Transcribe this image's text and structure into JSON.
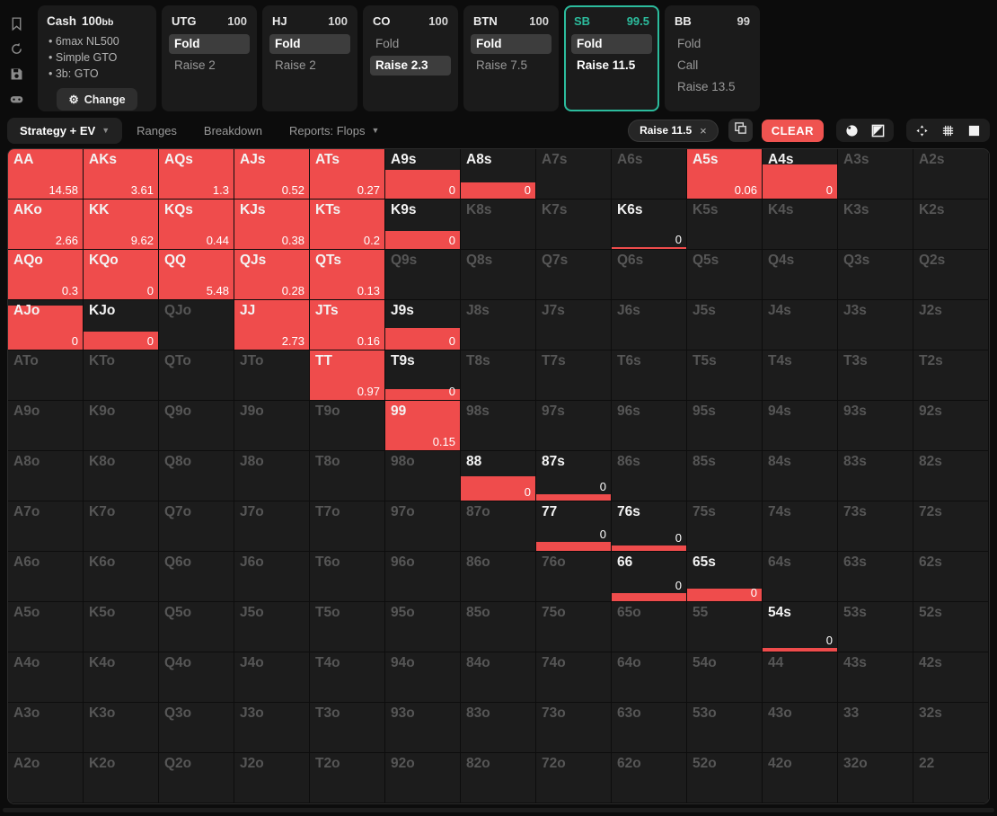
{
  "colors": {
    "accent_red": "#ef4c4c",
    "accent_teal": "#2cbc9d",
    "card_bg": "#1b1b1b",
    "cell_bg": "#1c1c1c"
  },
  "rail": {
    "icons": [
      "bookmark",
      "reset",
      "save",
      "gamepad",
      "row-height"
    ]
  },
  "config": {
    "game_type": "Cash",
    "stack": "100",
    "stack_unit": "bb",
    "bullets": [
      "6max NL500",
      "Simple GTO",
      "3b: GTO"
    ],
    "gear": "⚙",
    "change_label": "Change"
  },
  "positions": [
    {
      "name": "UTG",
      "stack": "100",
      "selected": false,
      "actions": [
        {
          "label": "Fold",
          "style": "pill"
        },
        {
          "label": "Raise 2",
          "style": "plain"
        }
      ]
    },
    {
      "name": "HJ",
      "stack": "100",
      "selected": false,
      "actions": [
        {
          "label": "Fold",
          "style": "pill"
        },
        {
          "label": "Raise 2",
          "style": "plain"
        }
      ]
    },
    {
      "name": "CO",
      "stack": "100",
      "selected": false,
      "actions": [
        {
          "label": "Fold",
          "style": "plain"
        },
        {
          "label": "Raise 2.3",
          "style": "pill"
        }
      ]
    },
    {
      "name": "BTN",
      "stack": "100",
      "selected": false,
      "actions": [
        {
          "label": "Fold",
          "style": "pill"
        },
        {
          "label": "Raise 7.5",
          "style": "plain"
        }
      ]
    },
    {
      "name": "SB",
      "stack": "99.5",
      "selected": true,
      "actions": [
        {
          "label": "Fold",
          "style": "pill"
        },
        {
          "label": "Raise 11.5",
          "style": "bold"
        }
      ]
    },
    {
      "name": "BB",
      "stack": "99",
      "selected": false,
      "actions": [
        {
          "label": "Fold",
          "style": "plain"
        },
        {
          "label": "Call",
          "style": "plain"
        },
        {
          "label": "Raise 13.5",
          "style": "plain"
        }
      ]
    }
  ],
  "toolbar": {
    "tabs": [
      {
        "label": "Strategy + EV",
        "caret": true,
        "active": true
      },
      {
        "label": "Ranges",
        "caret": false,
        "active": false
      },
      {
        "label": "Breakdown",
        "caret": false,
        "active": false
      },
      {
        "label": "Reports: Flops",
        "caret": true,
        "active": false
      }
    ],
    "filter_chip": {
      "label": "Raise 11.5",
      "close": "×"
    },
    "clear_label": "CLEAR",
    "right_icons": [
      "copy",
      "poker-chip",
      "contrast",
      "center",
      "grid",
      "square"
    ]
  },
  "chart_data": {
    "type": "heatmap",
    "note": "13x13 preflop hand matrix; cells = [hand, ev_value ('' if none shown), raise_fill_percent 0-100]",
    "rows": [
      [
        [
          "AA",
          "14.58",
          100
        ],
        [
          "AKs",
          "3.61",
          100
        ],
        [
          "AQs",
          "1.3",
          100
        ],
        [
          "AJs",
          "0.52",
          100
        ],
        [
          "ATs",
          "0.27",
          100
        ],
        [
          "A9s",
          "0",
          57
        ],
        [
          "A8s",
          "0",
          32
        ],
        [
          "A7s",
          "",
          0
        ],
        [
          "A6s",
          "",
          0
        ],
        [
          "A5s",
          "0.06",
          100
        ],
        [
          "A4s",
          "0",
          68
        ],
        [
          "A3s",
          "",
          0
        ],
        [
          "A2s",
          "",
          0
        ]
      ],
      [
        [
          "AKo",
          "2.66",
          100
        ],
        [
          "KK",
          "9.62",
          100
        ],
        [
          "KQs",
          "0.44",
          100
        ],
        [
          "KJs",
          "0.38",
          100
        ],
        [
          "KTs",
          "0.2",
          100
        ],
        [
          "K9s",
          "0",
          35
        ],
        [
          "K8s",
          "",
          0
        ],
        [
          "K7s",
          "",
          0
        ],
        [
          "K6s",
          "0",
          4
        ],
        [
          "K5s",
          "",
          0
        ],
        [
          "K4s",
          "",
          0
        ],
        [
          "K3s",
          "",
          0
        ],
        [
          "K2s",
          "",
          0
        ]
      ],
      [
        [
          "AQo",
          "0.3",
          100
        ],
        [
          "KQo",
          "0",
          100
        ],
        [
          "QQ",
          "5.48",
          100
        ],
        [
          "QJs",
          "0.28",
          100
        ],
        [
          "QTs",
          "0.13",
          100
        ],
        [
          "Q9s",
          "",
          0
        ],
        [
          "Q8s",
          "",
          0
        ],
        [
          "Q7s",
          "",
          0
        ],
        [
          "Q6s",
          "",
          0
        ],
        [
          "Q5s",
          "",
          0
        ],
        [
          "Q4s",
          "",
          0
        ],
        [
          "Q3s",
          "",
          0
        ],
        [
          "Q2s",
          "",
          0
        ]
      ],
      [
        [
          "AJo",
          "0",
          88
        ],
        [
          "KJo",
          "0",
          36
        ],
        [
          "QJo",
          "",
          0
        ],
        [
          "JJ",
          "2.73",
          100
        ],
        [
          "JTs",
          "0.16",
          100
        ],
        [
          "J9s",
          "0",
          43
        ],
        [
          "J8s",
          "",
          0
        ],
        [
          "J7s",
          "",
          0
        ],
        [
          "J6s",
          "",
          0
        ],
        [
          "J5s",
          "",
          0
        ],
        [
          "J4s",
          "",
          0
        ],
        [
          "J3s",
          "",
          0
        ],
        [
          "J2s",
          "",
          0
        ]
      ],
      [
        [
          "ATo",
          "",
          0
        ],
        [
          "KTo",
          "",
          0
        ],
        [
          "QTo",
          "",
          0
        ],
        [
          "JTo",
          "",
          0
        ],
        [
          "TT",
          "0.97",
          100
        ],
        [
          "T9s",
          "0",
          22
        ],
        [
          "T8s",
          "",
          0
        ],
        [
          "T7s",
          "",
          0
        ],
        [
          "T6s",
          "",
          0
        ],
        [
          "T5s",
          "",
          0
        ],
        [
          "T4s",
          "",
          0
        ],
        [
          "T3s",
          "",
          0
        ],
        [
          "T2s",
          "",
          0
        ]
      ],
      [
        [
          "A9o",
          "",
          0
        ],
        [
          "K9o",
          "",
          0
        ],
        [
          "Q9o",
          "",
          0
        ],
        [
          "J9o",
          "",
          0
        ],
        [
          "T9o",
          "",
          0
        ],
        [
          "99",
          "0.15",
          100
        ],
        [
          "98s",
          "",
          0
        ],
        [
          "97s",
          "",
          0
        ],
        [
          "96s",
          "",
          0
        ],
        [
          "95s",
          "",
          0
        ],
        [
          "94s",
          "",
          0
        ],
        [
          "93s",
          "",
          0
        ],
        [
          "92s",
          "",
          0
        ]
      ],
      [
        [
          "A8o",
          "",
          0
        ],
        [
          "K8o",
          "",
          0
        ],
        [
          "Q8o",
          "",
          0
        ],
        [
          "J8o",
          "",
          0
        ],
        [
          "T8o",
          "",
          0
        ],
        [
          "98o",
          "",
          0
        ],
        [
          "88",
          "0",
          48
        ],
        [
          "87s",
          "0",
          12
        ],
        [
          "86s",
          "",
          0
        ],
        [
          "85s",
          "",
          0
        ],
        [
          "84s",
          "",
          0
        ],
        [
          "83s",
          "",
          0
        ],
        [
          "82s",
          "",
          0
        ]
      ],
      [
        [
          "A7o",
          "",
          0
        ],
        [
          "K7o",
          "",
          0
        ],
        [
          "Q7o",
          "",
          0
        ],
        [
          "J7o",
          "",
          0
        ],
        [
          "T7o",
          "",
          0
        ],
        [
          "97o",
          "",
          0
        ],
        [
          "87o",
          "",
          0
        ],
        [
          "77",
          "0",
          18
        ],
        [
          "76s",
          "0",
          10
        ],
        [
          "75s",
          "",
          0
        ],
        [
          "74s",
          "",
          0
        ],
        [
          "73s",
          "",
          0
        ],
        [
          "72s",
          "",
          0
        ]
      ],
      [
        [
          "A6o",
          "",
          0
        ],
        [
          "K6o",
          "",
          0
        ],
        [
          "Q6o",
          "",
          0
        ],
        [
          "J6o",
          "",
          0
        ],
        [
          "T6o",
          "",
          0
        ],
        [
          "96o",
          "",
          0
        ],
        [
          "86o",
          "",
          0
        ],
        [
          "76o",
          "",
          0
        ],
        [
          "66",
          "0",
          16
        ],
        [
          "65s",
          "0",
          25
        ],
        [
          "64s",
          "",
          0
        ],
        [
          "63s",
          "",
          0
        ],
        [
          "62s",
          "",
          0
        ]
      ],
      [
        [
          "A5o",
          "",
          0
        ],
        [
          "K5o",
          "",
          0
        ],
        [
          "Q5o",
          "",
          0
        ],
        [
          "J5o",
          "",
          0
        ],
        [
          "T5o",
          "",
          0
        ],
        [
          "95o",
          "",
          0
        ],
        [
          "85o",
          "",
          0
        ],
        [
          "75o",
          "",
          0
        ],
        [
          "65o",
          "",
          0
        ],
        [
          "55",
          "",
          0
        ],
        [
          "54s",
          "0",
          8
        ],
        [
          "53s",
          "",
          0
        ],
        [
          "52s",
          "",
          0
        ]
      ],
      [
        [
          "A4o",
          "",
          0
        ],
        [
          "K4o",
          "",
          0
        ],
        [
          "Q4o",
          "",
          0
        ],
        [
          "J4o",
          "",
          0
        ],
        [
          "T4o",
          "",
          0
        ],
        [
          "94o",
          "",
          0
        ],
        [
          "84o",
          "",
          0
        ],
        [
          "74o",
          "",
          0
        ],
        [
          "64o",
          "",
          0
        ],
        [
          "54o",
          "",
          0
        ],
        [
          "44",
          "",
          0
        ],
        [
          "43s",
          "",
          0
        ],
        [
          "42s",
          "",
          0
        ]
      ],
      [
        [
          "A3o",
          "",
          0
        ],
        [
          "K3o",
          "",
          0
        ],
        [
          "Q3o",
          "",
          0
        ],
        [
          "J3o",
          "",
          0
        ],
        [
          "T3o",
          "",
          0
        ],
        [
          "93o",
          "",
          0
        ],
        [
          "83o",
          "",
          0
        ],
        [
          "73o",
          "",
          0
        ],
        [
          "63o",
          "",
          0
        ],
        [
          "53o",
          "",
          0
        ],
        [
          "43o",
          "",
          0
        ],
        [
          "33",
          "",
          0
        ],
        [
          "32s",
          "",
          0
        ]
      ],
      [
        [
          "A2o",
          "",
          0
        ],
        [
          "K2o",
          "",
          0
        ],
        [
          "Q2o",
          "",
          0
        ],
        [
          "J2o",
          "",
          0
        ],
        [
          "T2o",
          "",
          0
        ],
        [
          "92o",
          "",
          0
        ],
        [
          "82o",
          "",
          0
        ],
        [
          "72o",
          "",
          0
        ],
        [
          "62o",
          "",
          0
        ],
        [
          "52o",
          "",
          0
        ],
        [
          "42o",
          "",
          0
        ],
        [
          "32o",
          "",
          0
        ],
        [
          "22",
          "",
          0
        ]
      ]
    ]
  }
}
